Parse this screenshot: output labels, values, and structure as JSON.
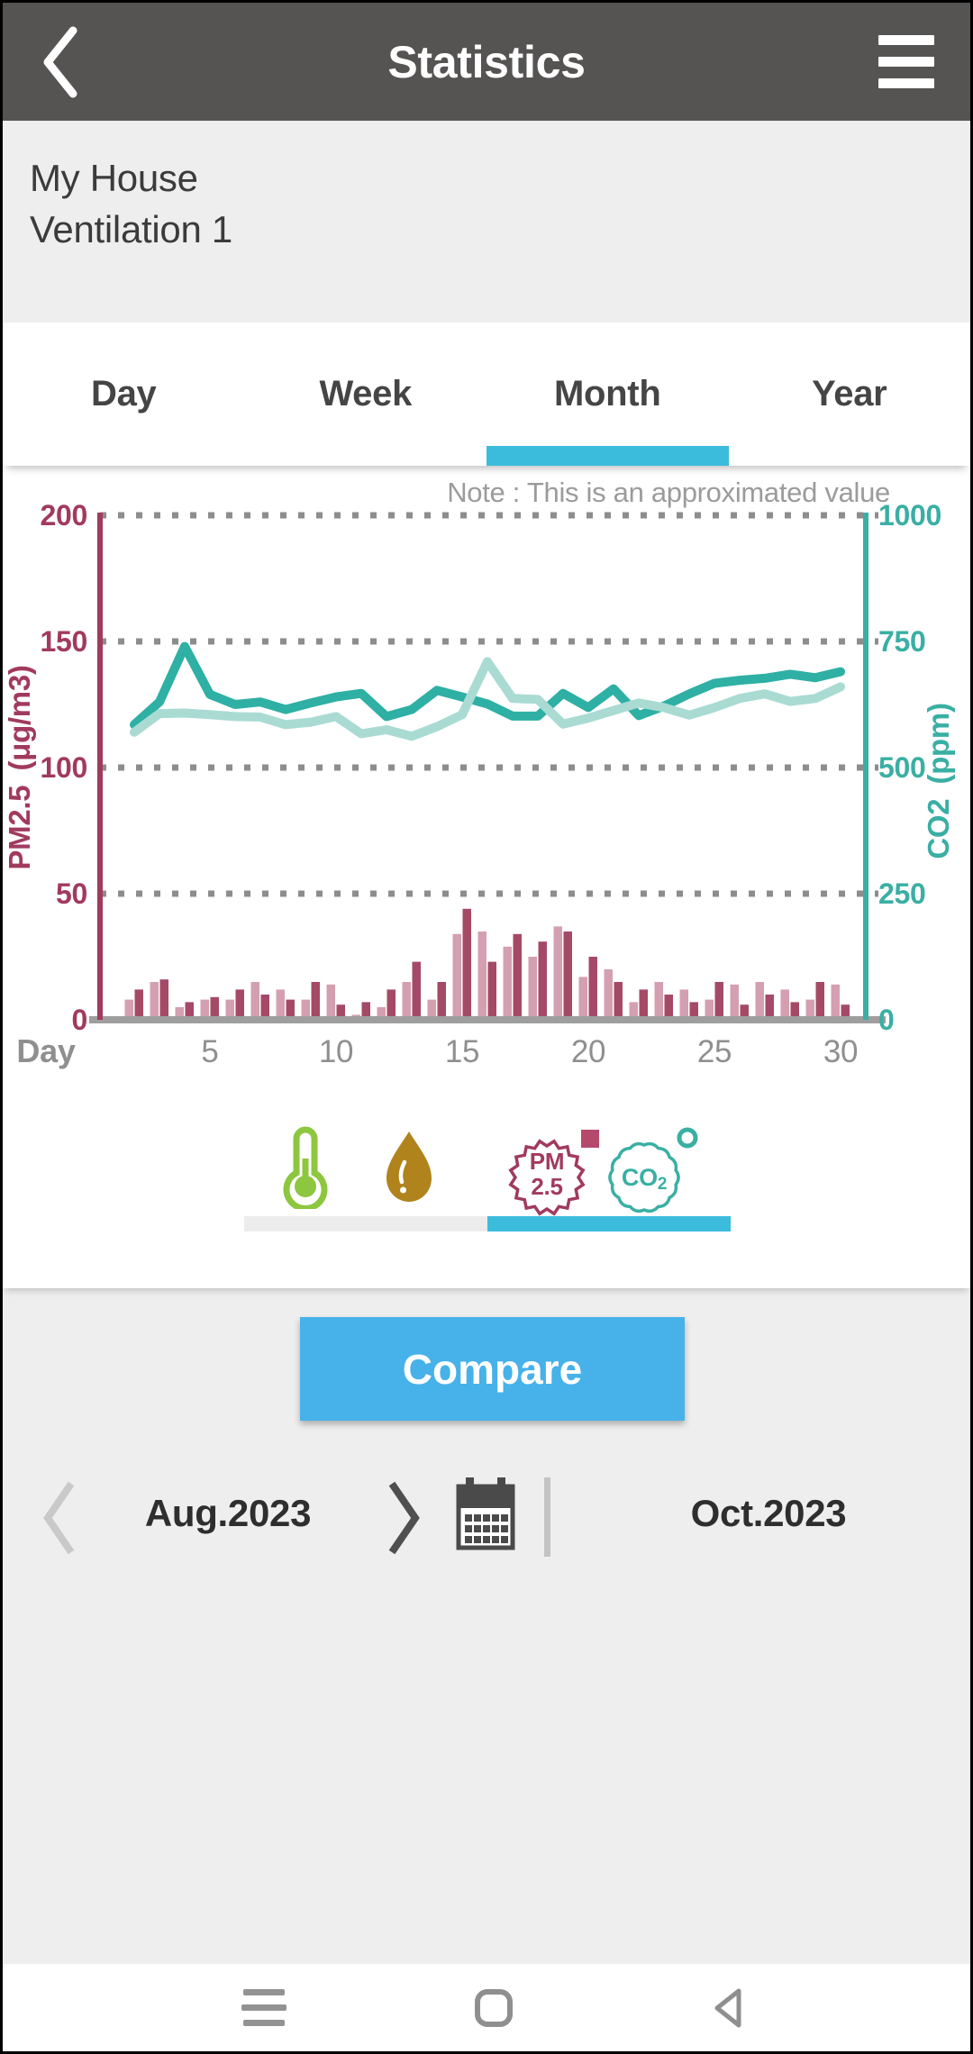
{
  "header": {
    "title": "Statistics"
  },
  "site": {
    "name": "My House",
    "device": "Ventilation 1"
  },
  "tabs": {
    "items": [
      "Day",
      "Week",
      "Month",
      "Year"
    ],
    "selected_index": 2,
    "selected": "Month"
  },
  "chart_note": "Note : This is an approximated value",
  "chart_data": {
    "type": "bar+line",
    "title": "",
    "x_label": "Day",
    "x_ticks": [
      5,
      10,
      15,
      20,
      25,
      30
    ],
    "days": [
      2,
      3,
      4,
      5,
      6,
      7,
      8,
      9,
      10,
      11,
      12,
      13,
      14,
      15,
      16,
      17,
      18,
      19,
      20,
      21,
      22,
      23,
      24,
      25,
      26,
      27,
      28,
      29,
      30
    ],
    "left_axis": {
      "title": "PM2.5 (μg/m3)",
      "range": [
        0,
        200
      ],
      "ticks": [
        0,
        50,
        100,
        150,
        200
      ]
    },
    "right_axis": {
      "title": "CO2 (ppm)",
      "range": [
        0,
        1000
      ],
      "ticks": [
        0,
        250,
        500,
        750,
        1000
      ]
    },
    "grid": "dotted horizontal",
    "legend_position": "none (sensor toggle row below)",
    "bar_series": [
      {
        "name": "Aug.2023",
        "unit": "μg/m3",
        "color": "#d49fb1",
        "values": [
          8,
          15,
          5,
          8,
          8,
          15,
          12,
          8,
          14,
          2,
          5,
          15,
          8,
          34,
          35,
          29,
          25,
          37,
          17,
          20,
          7,
          15,
          12,
          8,
          14,
          15,
          12,
          8,
          14
        ]
      },
      {
        "name": "Oct.2023",
        "unit": "μg/m3",
        "color": "#a54a66",
        "values": [
          12,
          16,
          7,
          9,
          12,
          10,
          8,
          15,
          6,
          7,
          12,
          23,
          15,
          44,
          23,
          34,
          31,
          35,
          25,
          15,
          12,
          10,
          7,
          15,
          6,
          10,
          7,
          15,
          6
        ]
      }
    ],
    "line_series": [
      {
        "name": "Aug.2023",
        "unit": "ppm",
        "color": "#2eb0a4",
        "values": [
          585,
          630,
          740,
          645,
          625,
          630,
          615,
          628,
          640,
          647,
          601,
          615,
          653,
          640,
          626,
          602,
          602,
          647,
          619,
          656,
          603,
          622,
          646,
          667,
          673,
          677,
          685,
          678,
          690
        ]
      },
      {
        "name": "Oct.2023",
        "unit": "ppm",
        "color": "#a9dbd3",
        "values": [
          570,
          607,
          608,
          605,
          601,
          600,
          585,
          590,
          601,
          567,
          575,
          562,
          581,
          605,
          710,
          637,
          635,
          586,
          598,
          613,
          628,
          619,
          604,
          619,
          637,
          646,
          631,
          637,
          660
        ]
      }
    ]
  },
  "sensors": {
    "items": [
      {
        "id": "temperature",
        "selected": false
      },
      {
        "id": "humidity",
        "selected": false
      },
      {
        "id": "pm25",
        "badge_line1": "PM",
        "badge_line2": "2.5",
        "selected": true
      },
      {
        "id": "co2",
        "badge_text": "CO",
        "badge_sub": "2",
        "selected": true
      }
    ]
  },
  "compare": {
    "label": "Compare"
  },
  "date_nav": {
    "left_month": "Aug.2023",
    "right_month": "Oct.2023"
  },
  "colors": {
    "header_bg": "#565353",
    "page_gray": "#efeeee",
    "accent_blue": "#3cbcdc",
    "button_blue": "#47b1ea",
    "pm_light": "#d49fb1",
    "pm_dark": "#a54a66",
    "co2_dark": "#2eb0a4",
    "co2_light": "#a9dbd3",
    "left_axis": "#a13a5e",
    "right_axis": "#3aafa4",
    "grid_gray": "#8d8d8d",
    "baseline_gray": "#9e9e9e",
    "note_gray": "#9b9b9b",
    "temp_green": "#8dc63f",
    "humidity_amber": "#b0831c"
  }
}
